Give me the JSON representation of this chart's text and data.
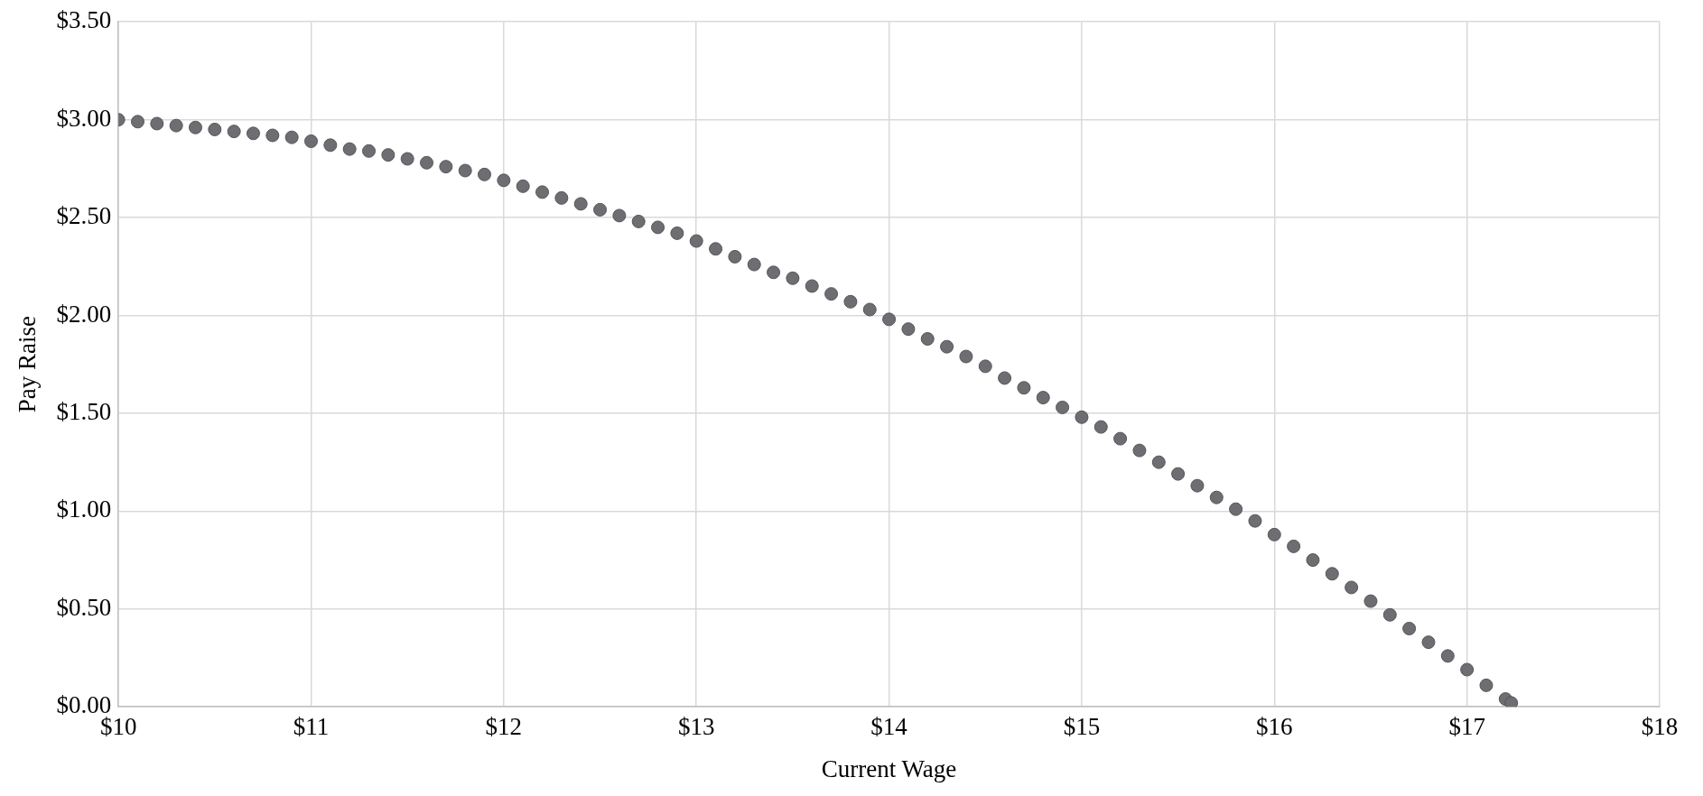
{
  "chart_data": {
    "type": "scatter",
    "xlabel": "Current Wage",
    "ylabel": "Pay Raise",
    "marker": "circle",
    "grid": true,
    "legend": false,
    "xlim": [
      10,
      18
    ],
    "ylim": [
      0,
      3.5
    ],
    "xticks": [
      {
        "value": 10,
        "label": "$10"
      },
      {
        "value": 11,
        "label": "$11"
      },
      {
        "value": 12,
        "label": "$12"
      },
      {
        "value": 13,
        "label": "$13"
      },
      {
        "value": 14,
        "label": "$14"
      },
      {
        "value": 15,
        "label": "$15"
      },
      {
        "value": 16,
        "label": "$16"
      },
      {
        "value": 17,
        "label": "$17"
      },
      {
        "value": 18,
        "label": "$18"
      }
    ],
    "yticks": [
      {
        "value": 0,
        "label": "$0.00"
      },
      {
        "value": 0.5,
        "label": "$0.50"
      },
      {
        "value": 1,
        "label": "$1.00"
      },
      {
        "value": 1.5,
        "label": "$1.50"
      },
      {
        "value": 2,
        "label": "$2.00"
      },
      {
        "value": 2.5,
        "label": "$2.50"
      },
      {
        "value": 3,
        "label": "$3.00"
      },
      {
        "value": 3.5,
        "label": "$3.50"
      }
    ],
    "series": [
      {
        "color": "#6e6e72",
        "x": [
          10.0,
          10.1,
          10.2,
          10.3,
          10.4,
          10.5,
          10.6,
          10.7,
          10.8,
          10.9,
          11.0,
          11.1,
          11.2,
          11.3,
          11.4,
          11.5,
          11.6,
          11.7,
          11.8,
          11.9,
          12.0,
          12.1,
          12.2,
          12.3,
          12.4,
          12.5,
          12.6,
          12.7,
          12.8,
          12.9,
          13.0,
          13.1,
          13.2,
          13.3,
          13.4,
          13.5,
          13.6,
          13.7,
          13.8,
          13.9,
          14.0,
          14.1,
          14.2,
          14.3,
          14.4,
          14.5,
          14.6,
          14.7,
          14.8,
          14.9,
          15.0,
          15.1,
          15.2,
          15.3,
          15.4,
          15.5,
          15.6,
          15.7,
          15.8,
          15.9,
          16.0,
          16.1,
          16.2,
          16.3,
          16.4,
          16.5,
          16.6,
          16.7,
          16.8,
          16.9,
          17.0,
          17.1,
          17.2,
          17.23
        ],
        "values": [
          3.0,
          2.99,
          2.98,
          2.97,
          2.96,
          2.95,
          2.94,
          2.93,
          2.92,
          2.91,
          2.89,
          2.87,
          2.85,
          2.84,
          2.82,
          2.8,
          2.78,
          2.76,
          2.74,
          2.72,
          2.69,
          2.66,
          2.63,
          2.6,
          2.57,
          2.54,
          2.51,
          2.48,
          2.45,
          2.42,
          2.38,
          2.34,
          2.3,
          2.26,
          2.22,
          2.19,
          2.15,
          2.11,
          2.07,
          2.03,
          1.98,
          1.93,
          1.88,
          1.84,
          1.79,
          1.74,
          1.68,
          1.63,
          1.58,
          1.53,
          1.48,
          1.43,
          1.37,
          1.31,
          1.25,
          1.19,
          1.13,
          1.07,
          1.01,
          0.95,
          0.88,
          0.82,
          0.75,
          0.68,
          0.61,
          0.54,
          0.47,
          0.4,
          0.33,
          0.26,
          0.19,
          0.11,
          0.04,
          0.02
        ]
      }
    ]
  }
}
